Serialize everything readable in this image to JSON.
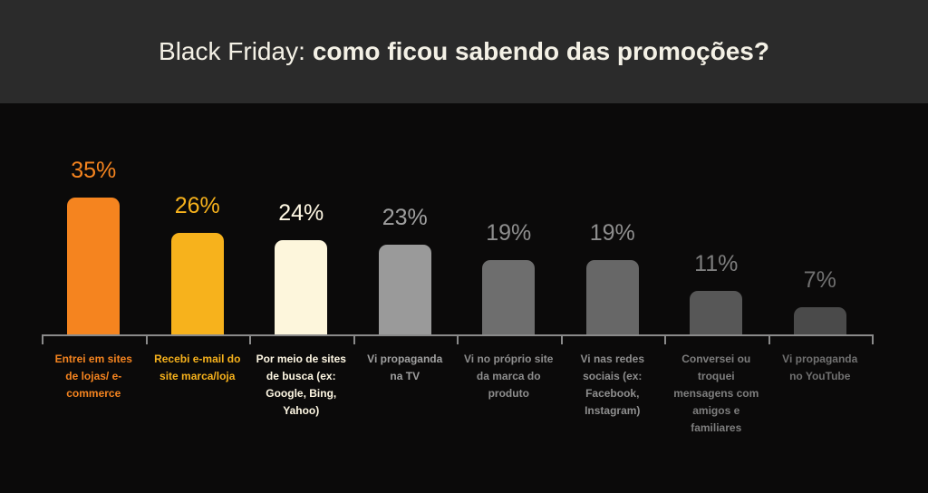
{
  "chart_data": {
    "type": "bar",
    "title": {
      "lead": "Black Friday:",
      "emphasis": "como ficou sabendo das promoções?"
    },
    "categories": [
      "Entrei em sites de lojas/ e-commerce",
      "Recebi e-mail do site marca/loja",
      "Por meio de sites de busca (ex: Google, Bing, Yahoo)",
      "Vi propaganda na TV",
      "Vi no próprio site da marca do produto",
      "Vi nas redes sociais (ex: Facebook, Instagram)",
      "Conversei ou troquei mensagens com amigos e familiares",
      "Vi propaganda no YouTube"
    ],
    "values": [
      35,
      26,
      24,
      23,
      19,
      19,
      11,
      7
    ],
    "value_labels": [
      "35%",
      "26%",
      "24%",
      "23%",
      "19%",
      "19%",
      "11%",
      "7%"
    ],
    "colors": [
      "#f5841f",
      "#f7b21c",
      "#fdf6dc",
      "#9a9a9a",
      "#6e6e6e",
      "#676767",
      "#575757",
      "#4a4a4a"
    ],
    "label_colors": [
      "#f5841f",
      "#f7b21c",
      "#fff8e4",
      "#a0a0a0",
      "#8e8e8e",
      "#8e8e8e",
      "#7e7e7e",
      "#707070"
    ]
  }
}
